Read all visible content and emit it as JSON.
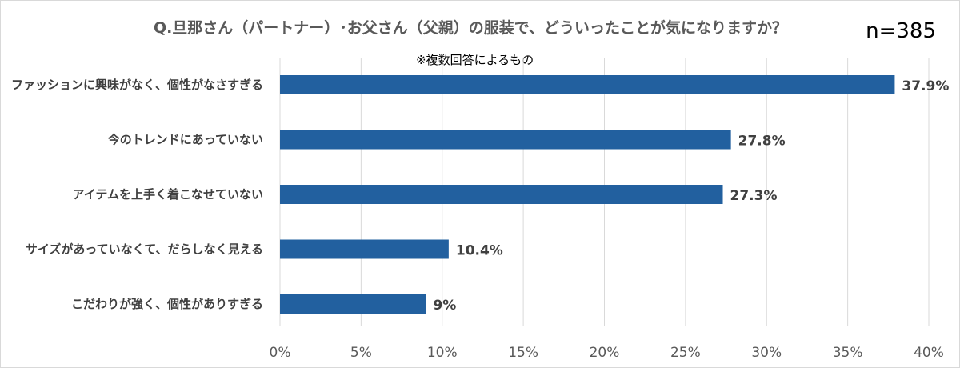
{
  "title": "Q.旦那さん（パートナー）･お父さん（父親）の服装で、どういったことが気になりますか？",
  "sample_size": "n=385",
  "note": "※複数回答によるもの",
  "colors": {
    "bar": "#22609f",
    "text": "#404040",
    "grid": "#d9d9d9"
  },
  "chart_data": {
    "type": "bar",
    "orientation": "horizontal",
    "categories": [
      "ファッションに興味がなく、個性がなさすぎる",
      "今のトレンドにあっていない",
      "アイテムを上手く着こなせていない",
      "サイズがあっていなくて、だらしなく見える",
      "こだわりが強く、個性がありすぎる"
    ],
    "values": [
      37.9,
      27.8,
      27.3,
      10.4,
      9
    ],
    "value_labels": [
      "37.9%",
      "27.8%",
      "27.3%",
      "10.4%",
      "9%"
    ],
    "xlim": [
      0,
      40
    ],
    "xticks": [
      0,
      5,
      10,
      15,
      20,
      25,
      30,
      35,
      40
    ],
    "xtick_labels": [
      "0%",
      "5%",
      "10%",
      "15%",
      "20%",
      "25%",
      "30%",
      "35%",
      "40%"
    ],
    "grid": true,
    "legend": "none"
  }
}
